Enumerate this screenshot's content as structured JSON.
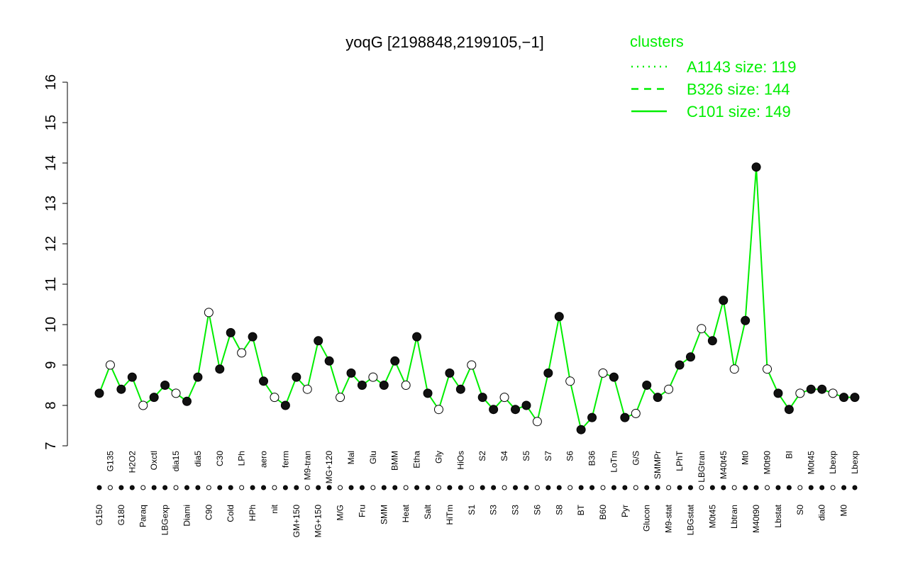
{
  "chart_data": {
    "type": "line",
    "title": "yoqG [2198848,2199105,−1]",
    "legend_title": "clusters",
    "legend": [
      {
        "label": "A1143 size: 119",
        "dash": "dotted"
      },
      {
        "label": "B326 size: 144",
        "dash": "dashed"
      },
      {
        "label": "C101 size: 149",
        "dash": "solid"
      }
    ],
    "line_color": "#00ee00",
    "categories": [
      "G150",
      "G135",
      "G180",
      "H2O2",
      "Paraq",
      "Oxctl",
      "LBGexp",
      "dia15",
      "Diami",
      "dia5",
      "C90",
      "C30",
      "Cold",
      "LPh",
      "HPh",
      "aero",
      "nit",
      "ferm",
      "GM+150",
      "M9-tran",
      "MG+150",
      "MG+120",
      "M/G",
      "Mal",
      "Fru",
      "Glu",
      "SMM",
      "BMM",
      "Heat",
      "Etha",
      "Salt",
      "Gly",
      "HiTm",
      "HiOs",
      "S1",
      "S2",
      "S3",
      "S4",
      "S3",
      "S5",
      "S6",
      "S7",
      "S8",
      "S6",
      "BT",
      "B36",
      "B60",
      "LoTm",
      "Pyr",
      "G/S",
      "Glucon",
      "SMMPr",
      "M9-stat",
      "LPhT",
      "LBGstat",
      "LBGtran",
      "M0t45",
      "M40t45",
      "Lbtran",
      "Mt0",
      "M40t90",
      "M0t90",
      "Lbstat",
      "BI",
      "S0",
      "M0t45",
      "dia0",
      "Lbexp",
      "M0",
      "Lbexp"
    ],
    "values": [
      8.3,
      9.0,
      8.4,
      8.7,
      8.0,
      8.2,
      8.5,
      8.3,
      8.1,
      8.7,
      10.3,
      8.9,
      9.8,
      9.3,
      9.7,
      8.6,
      8.2,
      8.0,
      8.7,
      8.4,
      9.6,
      9.1,
      8.2,
      8.8,
      8.5,
      8.7,
      8.5,
      9.1,
      8.5,
      9.7,
      8.3,
      7.9,
      8.8,
      8.4,
      9.0,
      8.2,
      7.9,
      8.2,
      7.9,
      8.0,
      7.6,
      8.8,
      10.2,
      8.6,
      7.4,
      7.7,
      8.8,
      8.7,
      7.7,
      7.8,
      8.5,
      8.2,
      8.4,
      9.0,
      9.2,
      9.9,
      9.6,
      10.6,
      8.9,
      10.1,
      13.9,
      8.9,
      8.3,
      7.9,
      8.3,
      8.4,
      8.4,
      8.3,
      8.2,
      8.2
    ],
    "ylim": [
      7,
      16
    ],
    "yticks": [
      7,
      8,
      9,
      10,
      11,
      12,
      13,
      14,
      15,
      16
    ]
  }
}
